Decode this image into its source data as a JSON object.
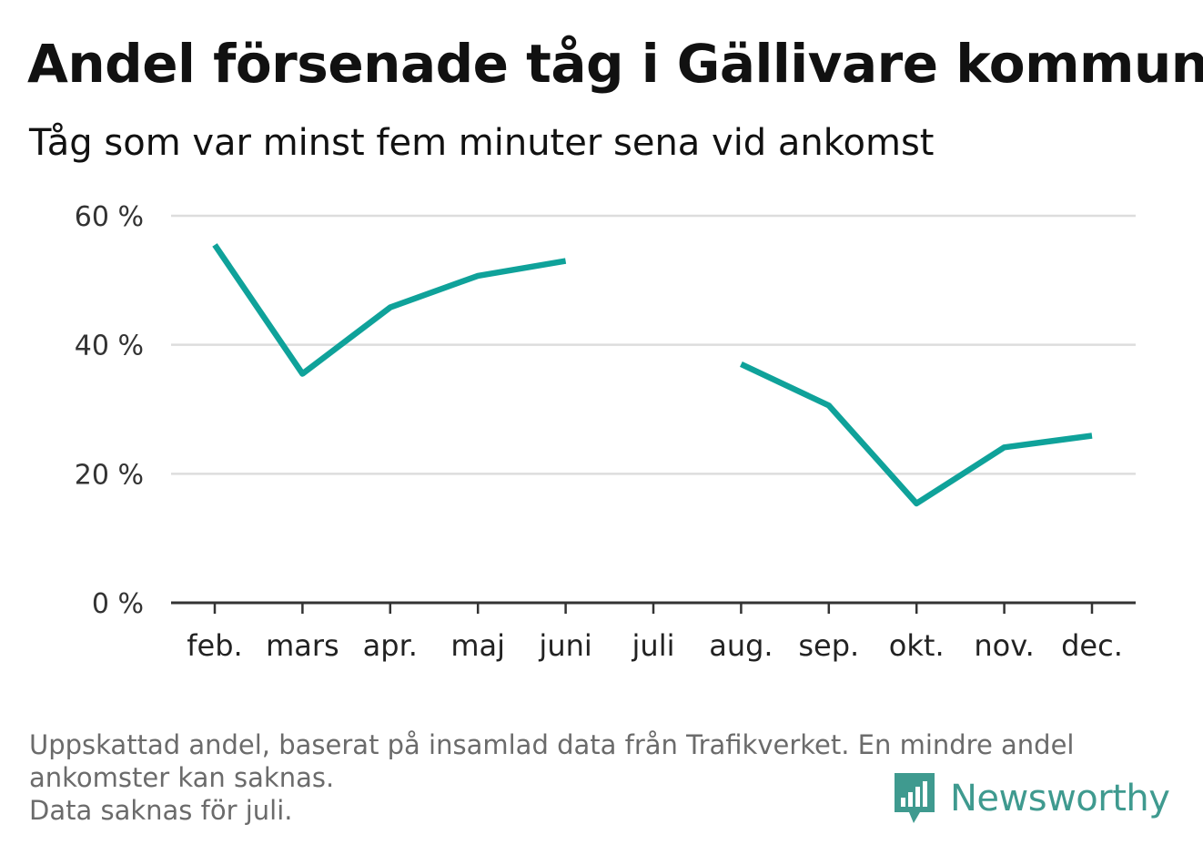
{
  "title": "Andel försenade tåg i Gällivare kommun",
  "subtitle": "Tåg som var minst fem minuter sena vid ankomst",
  "footnote": {
    "line1": "Uppskattad andel, baserat på insamlad data från Trafikverket. En mindre andel",
    "line2": "ankomster kan saknas.",
    "line3": "Data saknas för juli."
  },
  "logo": {
    "text": "Newsworthy",
    "icon": "bar-chart-speech-bubble-icon",
    "color": "#3f9a8f"
  },
  "chart_data": {
    "type": "line",
    "categories": [
      "feb.",
      "mars",
      "apr.",
      "maj",
      "juni",
      "juli",
      "aug.",
      "sep.",
      "okt.",
      "nov.",
      "dec."
    ],
    "series": [
      {
        "values": [
          55.5,
          35.5,
          45.8,
          50.7,
          53.0,
          null,
          37.0,
          30.6,
          15.4,
          24.1,
          25.9
        ]
      }
    ],
    "yticks": [
      0,
      20,
      40,
      60
    ],
    "ytick_labels": [
      "0 %",
      "20 %",
      "40 %",
      "60 %"
    ],
    "ylim": [
      0,
      60
    ],
    "grid": true,
    "colors": {
      "line": "#0fa29a",
      "grid": "#dddddd",
      "axis": "#333333"
    }
  }
}
